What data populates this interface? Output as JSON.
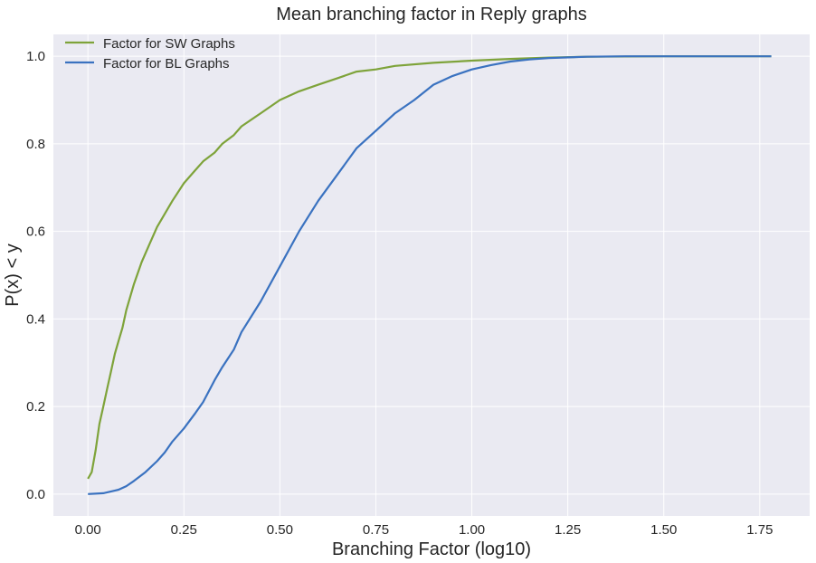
{
  "chart_data": {
    "type": "line",
    "title": "Mean branching factor in Reply graphs",
    "xlabel": "Branching Factor (log10)",
    "ylabel": "P(x) < y",
    "xlim": [
      -0.09,
      1.88
    ],
    "ylim": [
      -0.05,
      1.05
    ],
    "xticks": [
      0.0,
      0.25,
      0.5,
      0.75,
      1.0,
      1.25,
      1.5,
      1.75
    ],
    "xtick_labels": [
      "0.00",
      "0.25",
      "0.50",
      "0.75",
      "1.00",
      "1.25",
      "1.50",
      "1.75"
    ],
    "yticks": [
      0.0,
      0.2,
      0.4,
      0.6,
      0.8,
      1.0
    ],
    "ytick_labels": [
      "0.0",
      "0.2",
      "0.4",
      "0.6",
      "0.8",
      "1.0"
    ],
    "grid": true,
    "legend_position": "top-left",
    "colors": {
      "background": "#eaeaf2",
      "grid": "#ffffff",
      "sw": "#7ea33a",
      "bl": "#3a72c0"
    },
    "series": [
      {
        "name": "Factor for SW Graphs",
        "color": "#7ea33a",
        "x": [
          0.0,
          0.01,
          0.02,
          0.03,
          0.04,
          0.05,
          0.06,
          0.07,
          0.08,
          0.09,
          0.1,
          0.12,
          0.14,
          0.16,
          0.18,
          0.2,
          0.22,
          0.25,
          0.28,
          0.3,
          0.33,
          0.35,
          0.38,
          0.4,
          0.45,
          0.5,
          0.55,
          0.6,
          0.65,
          0.7,
          0.75,
          0.8,
          0.9,
          1.0,
          1.1,
          1.2,
          1.3,
          1.5,
          1.78
        ],
        "y": [
          0.035,
          0.05,
          0.1,
          0.16,
          0.2,
          0.24,
          0.28,
          0.32,
          0.35,
          0.38,
          0.42,
          0.48,
          0.53,
          0.57,
          0.61,
          0.64,
          0.67,
          0.71,
          0.74,
          0.76,
          0.78,
          0.8,
          0.82,
          0.84,
          0.87,
          0.9,
          0.92,
          0.935,
          0.95,
          0.965,
          0.97,
          0.978,
          0.985,
          0.99,
          0.994,
          0.997,
          0.999,
          1.0,
          1.0
        ]
      },
      {
        "name": "Factor for BL Graphs",
        "color": "#3a72c0",
        "x": [
          0.0,
          0.04,
          0.08,
          0.1,
          0.12,
          0.15,
          0.18,
          0.2,
          0.22,
          0.25,
          0.28,
          0.3,
          0.33,
          0.35,
          0.38,
          0.4,
          0.45,
          0.5,
          0.55,
          0.6,
          0.65,
          0.7,
          0.75,
          0.8,
          0.85,
          0.9,
          0.95,
          1.0,
          1.05,
          1.1,
          1.15,
          1.2,
          1.3,
          1.4,
          1.5,
          1.6,
          1.78
        ],
        "y": [
          0.0,
          0.002,
          0.01,
          0.018,
          0.03,
          0.05,
          0.075,
          0.095,
          0.12,
          0.15,
          0.185,
          0.21,
          0.26,
          0.29,
          0.33,
          0.37,
          0.44,
          0.52,
          0.6,
          0.67,
          0.73,
          0.79,
          0.83,
          0.87,
          0.9,
          0.935,
          0.955,
          0.97,
          0.98,
          0.988,
          0.993,
          0.996,
          0.999,
          1.0,
          1.0,
          1.0,
          1.0
        ]
      }
    ]
  }
}
